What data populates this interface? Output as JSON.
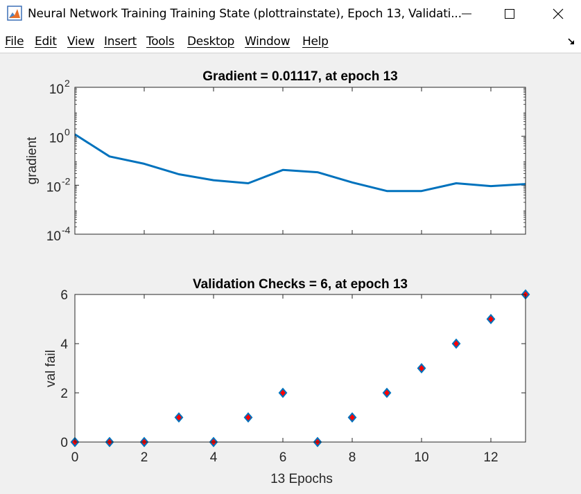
{
  "window": {
    "title": "Neural Network Training Training State (plottrainstate), Epoch 13, Validati...",
    "app_icon": "matlab-figure-icon",
    "controls": [
      "minimize-icon",
      "maximize-icon",
      "close-icon"
    ]
  },
  "menu": {
    "items": [
      "File",
      "Edit",
      "View",
      "Insert",
      "Tools",
      "Desktop",
      "Window",
      "Help"
    ],
    "dock_icon": "dock-arrow-icon"
  },
  "plots": {
    "gradient": {
      "title": "Gradient = 0.01117, at epoch 13",
      "ylabel": "gradient",
      "ytick_base": "10",
      "ytick_exponents": [
        "2",
        "0",
        "-2",
        "-4"
      ]
    },
    "validation": {
      "title": "Validation Checks = 6, at epoch 13",
      "ylabel": "val fail",
      "xlabel": "13 Epochs",
      "yticks": [
        "0",
        "2",
        "4",
        "6"
      ],
      "xticks": [
        "0",
        "2",
        "4",
        "6",
        "8",
        "10",
        "12"
      ]
    }
  },
  "chart_data": [
    {
      "type": "line",
      "title": "Gradient = 0.01117, at epoch 13",
      "xlabel": "",
      "ylabel": "gradient",
      "yscale": "log",
      "xlim": [
        0,
        13
      ],
      "ylim": [
        0.0001,
        100
      ],
      "line_color": "#0072bd",
      "x": [
        0,
        1,
        2,
        3,
        4,
        5,
        6,
        7,
        8,
        9,
        10,
        11,
        12,
        13
      ],
      "values": [
        1.2,
        0.15,
        0.075,
        0.028,
        0.016,
        0.012,
        0.042,
        0.034,
        0.013,
        0.0058,
        0.0058,
        0.012,
        0.0092,
        0.01117
      ]
    },
    {
      "type": "scatter",
      "title": "Validation Checks = 6, at epoch 13",
      "xlabel": "13 Epochs",
      "ylabel": "val fail",
      "xlim": [
        0,
        13
      ],
      "ylim": [
        0,
        6
      ],
      "marker": "diamond",
      "marker_face_color": "#ff0000",
      "marker_edge_color": "#0072bd",
      "x": [
        0,
        1,
        2,
        3,
        4,
        5,
        6,
        7,
        8,
        9,
        10,
        11,
        12,
        13
      ],
      "values": [
        0,
        0,
        0,
        1,
        0,
        1,
        2,
        0,
        1,
        2,
        3,
        4,
        5,
        6
      ]
    }
  ]
}
